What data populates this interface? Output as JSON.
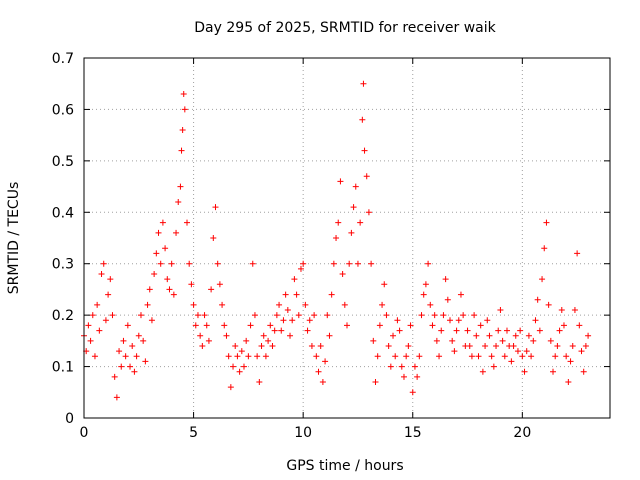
{
  "chart_data": {
    "type": "scatter",
    "title": "Day 295 of 2025, SRMTID for receiver waik",
    "xlabel": "GPS time / hours",
    "ylabel": "SRMTID / TECUs",
    "xlim": [
      0,
      24
    ],
    "ylim": [
      0,
      0.7
    ],
    "xticks": [
      0,
      5,
      10,
      15,
      20
    ],
    "xtick_labels": [
      "0",
      "5",
      "10",
      "15",
      "20"
    ],
    "yticks": [
      0,
      0.1,
      0.2,
      0.3,
      0.4,
      0.5,
      0.6,
      0.7
    ],
    "ytick_labels": [
      "0",
      "0.1",
      "0.2",
      "0.3",
      "0.4",
      "0.5",
      "0.6",
      "0.7"
    ],
    "grid": true,
    "marker": "+",
    "marker_color": "#ff0000",
    "series": [
      {
        "name": "SRMTID",
        "points": [
          [
            0.0,
            0.16
          ],
          [
            0.1,
            0.13
          ],
          [
            0.2,
            0.18
          ],
          [
            0.3,
            0.15
          ],
          [
            0.4,
            0.2
          ],
          [
            0.5,
            0.12
          ],
          [
            0.6,
            0.22
          ],
          [
            0.7,
            0.17
          ],
          [
            0.8,
            0.28
          ],
          [
            0.9,
            0.3
          ],
          [
            1.0,
            0.19
          ],
          [
            1.1,
            0.24
          ],
          [
            1.2,
            0.27
          ],
          [
            1.3,
            0.2
          ],
          [
            1.4,
            0.08
          ],
          [
            1.5,
            0.04
          ],
          [
            1.6,
            0.13
          ],
          [
            1.7,
            0.1
          ],
          [
            1.8,
            0.15
          ],
          [
            1.9,
            0.12
          ],
          [
            2.0,
            0.18
          ],
          [
            2.1,
            0.1
          ],
          [
            2.2,
            0.14
          ],
          [
            2.3,
            0.09
          ],
          [
            2.4,
            0.12
          ],
          [
            2.5,
            0.16
          ],
          [
            2.6,
            0.2
          ],
          [
            2.7,
            0.15
          ],
          [
            2.8,
            0.11
          ],
          [
            2.9,
            0.22
          ],
          [
            3.0,
            0.25
          ],
          [
            3.1,
            0.19
          ],
          [
            3.2,
            0.28
          ],
          [
            3.3,
            0.32
          ],
          [
            3.4,
            0.36
          ],
          [
            3.5,
            0.3
          ],
          [
            3.6,
            0.38
          ],
          [
            3.7,
            0.33
          ],
          [
            3.8,
            0.27
          ],
          [
            3.9,
            0.25
          ],
          [
            4.0,
            0.3
          ],
          [
            4.1,
            0.24
          ],
          [
            4.2,
            0.36
          ],
          [
            4.3,
            0.42
          ],
          [
            4.4,
            0.45
          ],
          [
            4.45,
            0.52
          ],
          [
            4.5,
            0.56
          ],
          [
            4.55,
            0.63
          ],
          [
            4.6,
            0.6
          ],
          [
            4.7,
            0.38
          ],
          [
            4.8,
            0.3
          ],
          [
            4.9,
            0.26
          ],
          [
            5.0,
            0.22
          ],
          [
            5.1,
            0.18
          ],
          [
            5.2,
            0.2
          ],
          [
            5.3,
            0.16
          ],
          [
            5.4,
            0.14
          ],
          [
            5.5,
            0.2
          ],
          [
            5.6,
            0.18
          ],
          [
            5.7,
            0.15
          ],
          [
            5.8,
            0.25
          ],
          [
            5.9,
            0.35
          ],
          [
            6.0,
            0.41
          ],
          [
            6.1,
            0.3
          ],
          [
            6.2,
            0.26
          ],
          [
            6.3,
            0.22
          ],
          [
            6.4,
            0.18
          ],
          [
            6.5,
            0.16
          ],
          [
            6.6,
            0.12
          ],
          [
            6.7,
            0.06
          ],
          [
            6.8,
            0.1
          ],
          [
            6.9,
            0.14
          ],
          [
            7.0,
            0.12
          ],
          [
            7.1,
            0.09
          ],
          [
            7.2,
            0.13
          ],
          [
            7.3,
            0.1
          ],
          [
            7.4,
            0.15
          ],
          [
            7.5,
            0.12
          ],
          [
            7.6,
            0.18
          ],
          [
            7.7,
            0.3
          ],
          [
            7.8,
            0.2
          ],
          [
            7.9,
            0.12
          ],
          [
            8.0,
            0.07
          ],
          [
            8.1,
            0.14
          ],
          [
            8.2,
            0.16
          ],
          [
            8.3,
            0.12
          ],
          [
            8.4,
            0.15
          ],
          [
            8.5,
            0.18
          ],
          [
            8.6,
            0.14
          ],
          [
            8.7,
            0.17
          ],
          [
            8.8,
            0.2
          ],
          [
            8.9,
            0.22
          ],
          [
            9.0,
            0.17
          ],
          [
            9.1,
            0.19
          ],
          [
            9.2,
            0.24
          ],
          [
            9.3,
            0.21
          ],
          [
            9.4,
            0.16
          ],
          [
            9.5,
            0.19
          ],
          [
            9.6,
            0.27
          ],
          [
            9.7,
            0.24
          ],
          [
            9.8,
            0.2
          ],
          [
            9.9,
            0.29
          ],
          [
            10.0,
            0.3
          ],
          [
            10.1,
            0.22
          ],
          [
            10.2,
            0.17
          ],
          [
            10.3,
            0.19
          ],
          [
            10.4,
            0.14
          ],
          [
            10.5,
            0.2
          ],
          [
            10.6,
            0.12
          ],
          [
            10.7,
            0.09
          ],
          [
            10.8,
            0.14
          ],
          [
            10.9,
            0.07
          ],
          [
            11.0,
            0.11
          ],
          [
            11.1,
            0.2
          ],
          [
            11.2,
            0.16
          ],
          [
            11.3,
            0.24
          ],
          [
            11.4,
            0.3
          ],
          [
            11.5,
            0.35
          ],
          [
            11.6,
            0.38
          ],
          [
            11.7,
            0.46
          ],
          [
            11.8,
            0.28
          ],
          [
            11.9,
            0.22
          ],
          [
            12.0,
            0.18
          ],
          [
            12.1,
            0.3
          ],
          [
            12.2,
            0.36
          ],
          [
            12.3,
            0.41
          ],
          [
            12.4,
            0.45
          ],
          [
            12.5,
            0.3
          ],
          [
            12.6,
            0.38
          ],
          [
            12.7,
            0.58
          ],
          [
            12.75,
            0.65
          ],
          [
            12.8,
            0.52
          ],
          [
            12.9,
            0.47
          ],
          [
            13.0,
            0.4
          ],
          [
            13.1,
            0.3
          ],
          [
            13.2,
            0.15
          ],
          [
            13.3,
            0.07
          ],
          [
            13.4,
            0.12
          ],
          [
            13.5,
            0.18
          ],
          [
            13.6,
            0.22
          ],
          [
            13.7,
            0.26
          ],
          [
            13.8,
            0.2
          ],
          [
            13.9,
            0.14
          ],
          [
            14.0,
            0.1
          ],
          [
            14.1,
            0.16
          ],
          [
            14.2,
            0.12
          ],
          [
            14.3,
            0.19
          ],
          [
            14.4,
            0.17
          ],
          [
            14.5,
            0.1
          ],
          [
            14.6,
            0.08
          ],
          [
            14.7,
            0.12
          ],
          [
            14.8,
            0.14
          ],
          [
            14.9,
            0.18
          ],
          [
            15.0,
            0.05
          ],
          [
            15.1,
            0.1
          ],
          [
            15.2,
            0.08
          ],
          [
            15.3,
            0.12
          ],
          [
            15.4,
            0.2
          ],
          [
            15.5,
            0.24
          ],
          [
            15.6,
            0.26
          ],
          [
            15.7,
            0.3
          ],
          [
            15.8,
            0.22
          ],
          [
            15.9,
            0.18
          ],
          [
            16.0,
            0.2
          ],
          [
            16.1,
            0.15
          ],
          [
            16.2,
            0.12
          ],
          [
            16.3,
            0.17
          ],
          [
            16.4,
            0.2
          ],
          [
            16.5,
            0.27
          ],
          [
            16.6,
            0.23
          ],
          [
            16.7,
            0.19
          ],
          [
            16.8,
            0.15
          ],
          [
            16.9,
            0.13
          ],
          [
            17.0,
            0.17
          ],
          [
            17.1,
            0.19
          ],
          [
            17.2,
            0.24
          ],
          [
            17.3,
            0.2
          ],
          [
            17.4,
            0.14
          ],
          [
            17.5,
            0.17
          ],
          [
            17.6,
            0.14
          ],
          [
            17.7,
            0.12
          ],
          [
            17.8,
            0.2
          ],
          [
            17.9,
            0.16
          ],
          [
            18.0,
            0.12
          ],
          [
            18.1,
            0.18
          ],
          [
            18.2,
            0.09
          ],
          [
            18.3,
            0.14
          ],
          [
            18.4,
            0.19
          ],
          [
            18.5,
            0.16
          ],
          [
            18.6,
            0.12
          ],
          [
            18.7,
            0.1
          ],
          [
            18.8,
            0.14
          ],
          [
            18.9,
            0.17
          ],
          [
            19.0,
            0.21
          ],
          [
            19.1,
            0.15
          ],
          [
            19.2,
            0.12
          ],
          [
            19.3,
            0.17
          ],
          [
            19.4,
            0.14
          ],
          [
            19.5,
            0.11
          ],
          [
            19.6,
            0.14
          ],
          [
            19.7,
            0.16
          ],
          [
            19.8,
            0.13
          ],
          [
            19.9,
            0.17
          ],
          [
            20.0,
            0.12
          ],
          [
            20.1,
            0.09
          ],
          [
            20.2,
            0.13
          ],
          [
            20.3,
            0.16
          ],
          [
            20.4,
            0.12
          ],
          [
            20.5,
            0.15
          ],
          [
            20.6,
            0.19
          ],
          [
            20.7,
            0.23
          ],
          [
            20.8,
            0.17
          ],
          [
            20.9,
            0.27
          ],
          [
            21.0,
            0.33
          ],
          [
            21.1,
            0.38
          ],
          [
            21.2,
            0.22
          ],
          [
            21.3,
            0.15
          ],
          [
            21.4,
            0.09
          ],
          [
            21.5,
            0.12
          ],
          [
            21.6,
            0.14
          ],
          [
            21.7,
            0.17
          ],
          [
            21.8,
            0.21
          ],
          [
            21.9,
            0.18
          ],
          [
            22.0,
            0.12
          ],
          [
            22.1,
            0.07
          ],
          [
            22.2,
            0.11
          ],
          [
            22.3,
            0.14
          ],
          [
            22.4,
            0.21
          ],
          [
            22.5,
            0.32
          ],
          [
            22.6,
            0.18
          ],
          [
            22.7,
            0.13
          ],
          [
            22.8,
            0.09
          ],
          [
            22.9,
            0.14
          ],
          [
            23.0,
            0.16
          ]
        ]
      }
    ]
  }
}
